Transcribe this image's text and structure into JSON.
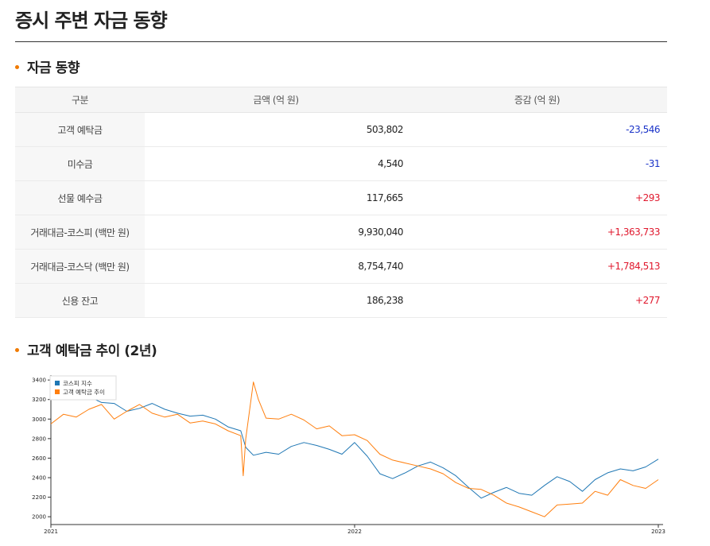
{
  "page": {
    "title": "증시 주변 자금 동향"
  },
  "section_flow": {
    "title": "자금 동향"
  },
  "table": {
    "headers": [
      "구분",
      "금액 (억 원)",
      "증감 (억 원)"
    ],
    "rows": [
      {
        "label": "고객 예탁금",
        "amount": "503,802",
        "change": "-23,546",
        "sign": "neg"
      },
      {
        "label": "미수금",
        "amount": "4,540",
        "change": "-31",
        "sign": "neg"
      },
      {
        "label": "선물 예수금",
        "amount": "117,665",
        "change": "+293",
        "sign": "pos"
      },
      {
        "label": "거래대금-코스피 (백만 원)",
        "amount": "9,930,040",
        "change": "+1,363,733",
        "sign": "pos"
      },
      {
        "label": "거래대금-코스닥 (백만 원)",
        "amount": "8,754,740",
        "change": "+1,784,513",
        "sign": "pos"
      },
      {
        "label": "신용 잔고",
        "amount": "186,238",
        "change": "+277",
        "sign": "pos"
      }
    ]
  },
  "section_chart": {
    "title": "고객 예탁금 추이 (2년)"
  },
  "chart_data": {
    "type": "line",
    "title": "",
    "xlabel": "",
    "ylabel": "",
    "x_ticks": [
      "2021",
      "2022",
      "2023"
    ],
    "y_ticks": [
      2000,
      2200,
      2400,
      2600,
      2800,
      3000,
      3200,
      3400
    ],
    "ylim": [
      1920,
      3450
    ],
    "x_range": [
      0,
      24
    ],
    "legend_position": "top-left",
    "series": [
      {
        "name": "코스피 지수",
        "color": "#1f77b4",
        "x": [
          0,
          0.5,
          1,
          1.5,
          2,
          2.5,
          3,
          3.5,
          4,
          4.5,
          5,
          5.5,
          6,
          6.5,
          7,
          7.5,
          7.7,
          8,
          8.5,
          9,
          9.5,
          10,
          10.5,
          11,
          11.5,
          12,
          12.5,
          13,
          13.5,
          14,
          14.5,
          15,
          15.5,
          16,
          16.5,
          17,
          17.5,
          18,
          18.5,
          19,
          19.5,
          20,
          20.5,
          21,
          21.5,
          22,
          22.5,
          23,
          23.5,
          24
        ],
        "values": [
          3210,
          3240,
          3270,
          3230,
          3170,
          3160,
          3080,
          3110,
          3160,
          3100,
          3060,
          3030,
          3040,
          3000,
          2920,
          2880,
          2710,
          2630,
          2660,
          2640,
          2720,
          2760,
          2730,
          2690,
          2640,
          2760,
          2620,
          2440,
          2390,
          2450,
          2520,
          2560,
          2500,
          2420,
          2300,
          2190,
          2250,
          2300,
          2240,
          2220,
          2320,
          2410,
          2360,
          2260,
          2380,
          2450,
          2490,
          2470,
          2510,
          2590
        ]
      },
      {
        "name": "고객 예탁금 추이",
        "color": "#ff7f0e",
        "x": [
          0,
          0.5,
          1,
          1.5,
          2,
          2.5,
          3,
          3.5,
          4,
          4.5,
          5,
          5.5,
          6,
          6.5,
          7,
          7.5,
          7.6,
          7.7,
          8,
          8.2,
          8.5,
          9,
          9.5,
          10,
          10.5,
          11,
          11.5,
          12,
          12.5,
          13,
          13.5,
          14,
          14.5,
          15,
          15.5,
          16,
          16.5,
          17,
          17.5,
          18,
          18.5,
          19,
          19.5,
          20,
          20.5,
          21,
          21.5,
          22,
          22.5,
          23,
          23.5,
          24
        ],
        "values": [
          2950,
          3050,
          3020,
          3100,
          3150,
          3000,
          3080,
          3150,
          3060,
          3020,
          3050,
          2960,
          2980,
          2950,
          2880,
          2830,
          2420,
          2800,
          3380,
          3200,
          3010,
          3000,
          3050,
          2990,
          2900,
          2930,
          2830,
          2840,
          2780,
          2640,
          2580,
          2550,
          2520,
          2490,
          2440,
          2350,
          2290,
          2280,
          2220,
          2140,
          2100,
          2050,
          2000,
          2120,
          2130,
          2140,
          2260,
          2220,
          2380,
          2320,
          2290,
          2380
        ]
      }
    ]
  }
}
